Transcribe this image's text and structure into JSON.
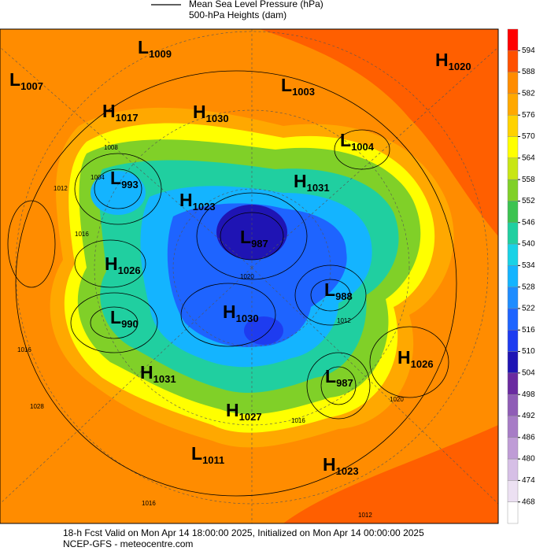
{
  "legend": {
    "pressure": "Mean Sea Level Pressure (hPa)",
    "heights": "500-hPa Heights (dam)"
  },
  "colorbar": {
    "levels": [
      468,
      474,
      480,
      486,
      492,
      498,
      504,
      510,
      516,
      522,
      528,
      534,
      540,
      546,
      552,
      558,
      564,
      570,
      576,
      582,
      588,
      594
    ],
    "colors": [
      "#ffffff",
      "#ece0f2",
      "#d6bfe6",
      "#bf9cd6",
      "#a77cc6",
      "#8f5cb6",
      "#6a2aa0",
      "#1f14b4",
      "#1e3cf0",
      "#1e64ff",
      "#1e8cff",
      "#14b4ff",
      "#18d2e6",
      "#20cfa0",
      "#3cc350",
      "#80d028",
      "#c8e614",
      "#ffff00",
      "#ffd200",
      "#ffa800",
      "#ff8c00",
      "#ff5000",
      "#ff0000"
    ]
  },
  "centers": [
    {
      "type": "L",
      "value": 1009
    },
    {
      "type": "H",
      "value": 1020
    },
    {
      "type": "L",
      "value": 1007
    },
    {
      "type": "L",
      "value": 1003
    },
    {
      "type": "H",
      "value": 1017
    },
    {
      "type": "H",
      "value": 1030
    },
    {
      "type": "L",
      "value": 1004
    },
    {
      "type": "L",
      "value": 993
    },
    {
      "type": "H",
      "value": 1031
    },
    {
      "type": "H",
      "value": 1023
    },
    {
      "type": "L",
      "value": 987
    },
    {
      "type": "H",
      "value": 1026
    },
    {
      "type": "L",
      "value": 988
    },
    {
      "type": "L",
      "value": 990
    },
    {
      "type": "H",
      "value": 1030
    },
    {
      "type": "H",
      "value": 1026
    },
    {
      "type": "H",
      "value": 1031
    },
    {
      "type": "L",
      "value": 987
    },
    {
      "type": "H",
      "value": 1027
    },
    {
      "type": "L",
      "value": 1011
    },
    {
      "type": "H",
      "value": 1023
    }
  ],
  "contour_labels": [
    1008,
    1012,
    1016,
    1004,
    1020,
    1016,
    1028,
    1016,
    1012,
    1020,
    1016,
    1012
  ],
  "footer": {
    "line1": "18-h Fcst Valid on Mon Apr 14 18:00:00 2025, Initialized on Mon Apr 14 00:00:00 2025",
    "line2": "NCEP-GFS  - meteocentre.com"
  }
}
